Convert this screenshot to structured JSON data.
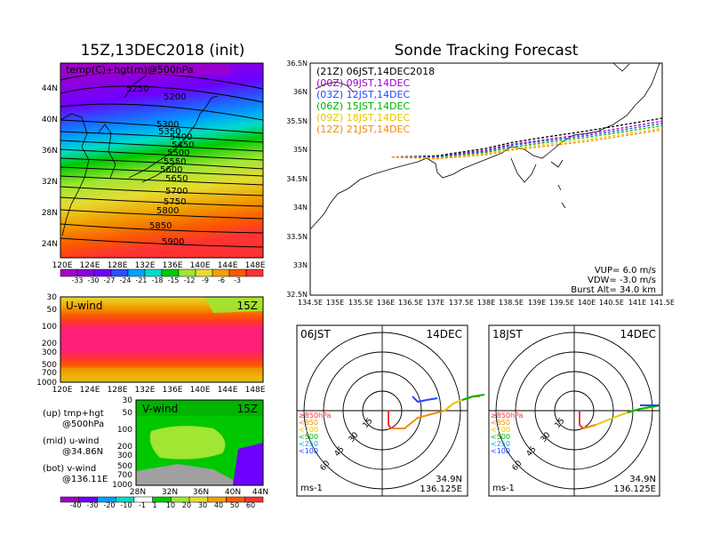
{
  "map_panel": {
    "title": "15Z,13DEC2018 (init)",
    "field_label": "temp(C)+hgt(m)@500hPa",
    "lon_ticks": [
      "120E",
      "124E",
      "128E",
      "132E",
      "136E",
      "140E",
      "144E",
      "148E"
    ],
    "lat_ticks": [
      "44N",
      "40N",
      "36N",
      "32N",
      "28N",
      "24N"
    ],
    "contour_labels": [
      "5250",
      "5200",
      "5300",
      "5350",
      "5400",
      "5450",
      "5500",
      "5550",
      "5600",
      "5650",
      "5700",
      "5750",
      "5800",
      "5850",
      "5900"
    ],
    "colorbar_labels": [
      "-33",
      "-30",
      "-27",
      "-24",
      "-21",
      "-18",
      "-15",
      "-12",
      "-9",
      "-6",
      "-3"
    ],
    "colors": [
      "#a000c8",
      "#8c00dc",
      "#6e00ff",
      "#2a50ff",
      "#00a0ff",
      "#00dcc8",
      "#00c800",
      "#a0e632",
      "#e6dc32",
      "#f0a000",
      "#fa5a00",
      "#ff3232"
    ]
  },
  "u_panel": {
    "title": "U-wind",
    "time": "15Z",
    "p_ticks": [
      "30",
      "50",
      "100",
      "200",
      "300",
      "500",
      "700",
      "1000"
    ],
    "lon_ticks": [
      "120E",
      "124E",
      "128E",
      "132E",
      "136E",
      "140E",
      "144E",
      "148E"
    ]
  },
  "v_panel": {
    "title": "V-wind",
    "time": "15Z",
    "p_ticks": [
      "30",
      "50",
      "100",
      "200",
      "300",
      "500",
      "700",
      "1000"
    ],
    "lat_ticks": [
      "28N",
      "32N",
      "36N",
      "40N",
      "44N"
    ],
    "colorbar_labels": [
      "-40",
      "-30",
      "-20",
      "-10",
      "-1",
      "1",
      "10",
      "20",
      "30",
      "40",
      "50",
      "60"
    ],
    "colors": [
      "#a000c8",
      "#6e00ff",
      "#00a0ff",
      "#00dcc8",
      "#ffffff",
      "#00c800",
      "#a0e632",
      "#e6dc32",
      "#f0a000",
      "#fa5a00",
      "#ff3232"
    ]
  },
  "legend_notes": [
    {
      "line1": "(up) tmp+hgt",
      "line2": "@500hPa"
    },
    {
      "line1": "(mid) u-wind",
      "line2": "@34.86N"
    },
    {
      "line1": "(bot) v-wind",
      "line2": "@136.11E"
    }
  ],
  "tracking": {
    "title": "Sonde Tracking Forecast",
    "legend": [
      {
        "label": "(21Z) 06JST,14DEC2018",
        "color": "#000000"
      },
      {
        "label": "(00Z) 09JST,14DEC",
        "color": "#a000c8"
      },
      {
        "label": "(03Z) 12JST,14DEC",
        "color": "#2846ff"
      },
      {
        "label": "(06Z) 15JST,14DEC",
        "color": "#00b400"
      },
      {
        "label": "(09Z) 18JST,14DEC",
        "color": "#e6c800"
      },
      {
        "label": "(12Z) 21JST,14DEC",
        "color": "#f08c00"
      }
    ],
    "lon_ticks": [
      "134.5E",
      "135E",
      "135.5E",
      "136E",
      "136.5E",
      "137E",
      "137.5E",
      "138E",
      "138.5E",
      "139E",
      "139.5E",
      "140E",
      "140.5E",
      "141E",
      "141.5E"
    ],
    "lat_ticks": [
      "36.5N",
      "36N",
      "35.5N",
      "35N",
      "34.5N",
      "34N",
      "33.5N",
      "33N",
      "32.5N"
    ],
    "params": [
      "VUP= 6.0 m/s",
      "VDW= -3.0 m/s",
      "Burst Alt= 34.0 km"
    ]
  },
  "hodographs": [
    {
      "time": "06JST",
      "date": "14DEC",
      "lat": "34.9N",
      "lon": "136.125E",
      "unit": "ms-1",
      "ring_labels": [
        "15",
        "30",
        "45",
        "60"
      ],
      "levels": [
        "≥850hPa",
        "<850",
        "<700",
        "<500",
        "<250",
        "<100"
      ]
    },
    {
      "time": "18JST",
      "date": "14DEC",
      "lat": "34.9N",
      "lon": "136.125E",
      "unit": "ms-1",
      "ring_labels": [
        "15",
        "30",
        "45",
        "60"
      ],
      "levels": [
        "≥850hPa",
        "<850",
        "<700",
        "<500",
        "<250",
        "<100"
      ]
    }
  ],
  "chart_data": [
    {
      "type": "heatmap",
      "title": "15Z,13DEC2018 (init)",
      "field": "temp(C)+hgt(m)@500hPa",
      "xlim": [
        120,
        149
      ],
      "ylim": [
        22,
        47
      ],
      "temperature_levels_C": [
        -33,
        -30,
        -27,
        -24,
        -21,
        -18,
        -15,
        -12,
        -9,
        -6,
        -3
      ],
      "height_contours_m": [
        5200,
        5250,
        5300,
        5350,
        5400,
        5450,
        5500,
        5550,
        5600,
        5650,
        5700,
        5750,
        5800,
        5850,
        5900
      ]
    },
    {
      "type": "heatmap",
      "title": "U-wind",
      "x": "longitude 120E-149E at 34.86N",
      "y": "pressure 1000-30 hPa",
      "levels": [
        -40,
        -30,
        -20,
        -10,
        -1,
        1,
        10,
        20,
        30,
        40,
        50,
        60
      ]
    },
    {
      "type": "heatmap",
      "title": "V-wind",
      "x": "latitude 28N-44N at 136.11E",
      "y": "pressure 1000-30 hPa",
      "levels": [
        -40,
        -30,
        -20,
        -10,
        -1,
        1,
        10,
        20,
        30,
        40,
        50,
        60
      ]
    },
    {
      "type": "line",
      "title": "Sonde Tracking Forecast",
      "xlim": [
        134.5,
        141.5
      ],
      "ylim": [
        32.5,
        36.5
      ],
      "series": [
        {
          "name": "(21Z) 06JST,14DEC2018",
          "x": [
            136.125,
            137,
            138,
            138.5,
            139,
            140,
            141.5
          ],
          "y": [
            34.88,
            34.9,
            35.03,
            35.13,
            35.2,
            35.33,
            35.55
          ]
        },
        {
          "name": "(00Z) 09JST,14DEC",
          "x": [
            136.125,
            137,
            138,
            138.5,
            139,
            140,
            141.5
          ],
          "y": [
            34.88,
            34.89,
            35.0,
            35.1,
            35.16,
            35.28,
            35.5
          ]
        },
        {
          "name": "(03Z) 12JST,14DEC",
          "x": [
            136.125,
            137,
            138,
            138.5,
            139,
            140,
            141.5
          ],
          "y": [
            34.88,
            34.88,
            34.98,
            35.08,
            35.14,
            35.25,
            35.46
          ]
        },
        {
          "name": "(06Z) 15JST,14DEC",
          "x": [
            136.125,
            137,
            138,
            138.5,
            139,
            140,
            141.5
          ],
          "y": [
            34.88,
            34.87,
            34.96,
            35.05,
            35.11,
            35.22,
            35.42
          ]
        },
        {
          "name": "(09Z) 18JST,14DEC",
          "x": [
            136.125,
            137,
            138,
            138.5,
            139,
            140,
            141.5
          ],
          "y": [
            34.88,
            34.86,
            34.94,
            35.02,
            35.08,
            35.18,
            35.38
          ]
        },
        {
          "name": "(12Z) 21JST,14DEC",
          "x": [
            136.125,
            137,
            138,
            138.5,
            139,
            140,
            141.5
          ],
          "y": [
            34.88,
            34.85,
            34.92,
            35.0,
            35.05,
            35.15,
            35.35
          ]
        }
      ]
    }
  ]
}
